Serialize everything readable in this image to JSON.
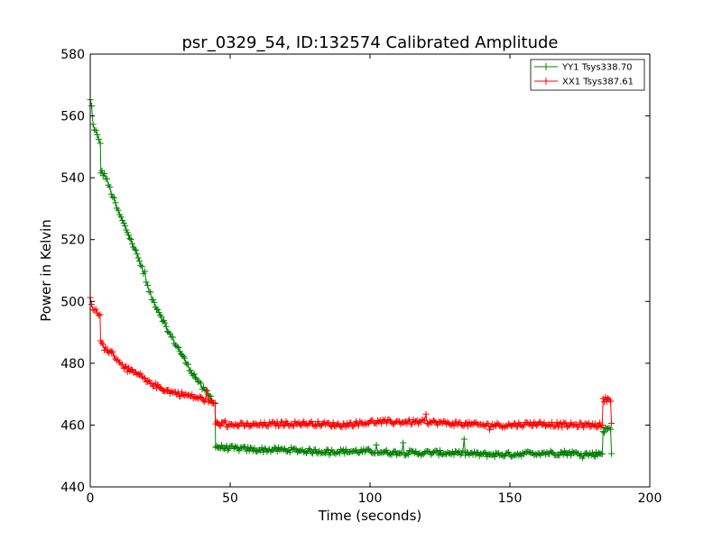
{
  "chart_data": {
    "type": "line",
    "title": "psr_0329_54, ID:132574 Calibrated Amplitude",
    "xlabel": "Time (seconds)",
    "ylabel": "Power in Kelvin",
    "xlim": [
      0,
      200
    ],
    "ylim": [
      440,
      580
    ],
    "xticks": [
      0,
      50,
      100,
      150,
      200
    ],
    "yticks": [
      440,
      460,
      480,
      500,
      520,
      540,
      560,
      580
    ],
    "grid": false,
    "legend_position": "top-right",
    "marker": "plus",
    "series": [
      {
        "name": "YY1 Tsys338.70",
        "color": "#008000",
        "points": [
          [
            0,
            565
          ],
          [
            0.5,
            563
          ],
          [
            1,
            557
          ],
          [
            2,
            555
          ],
          [
            3,
            552
          ],
          [
            3.6,
            551
          ],
          [
            3.8,
            542
          ],
          [
            5,
            541
          ],
          [
            6,
            539
          ],
          [
            8,
            534
          ],
          [
            10,
            529
          ],
          [
            12,
            525
          ],
          [
            15,
            519
          ],
          [
            18,
            512
          ],
          [
            20,
            506
          ],
          [
            22,
            501
          ],
          [
            25,
            496
          ],
          [
            28,
            490
          ],
          [
            30,
            487
          ],
          [
            32,
            484
          ],
          [
            35,
            479
          ],
          [
            38,
            475
          ],
          [
            40,
            472
          ],
          [
            42,
            470
          ],
          [
            44,
            468
          ],
          [
            44.6,
            467
          ],
          [
            44.8,
            453
          ],
          [
            50,
            452.5
          ],
          [
            60,
            452
          ],
          [
            70,
            452
          ],
          [
            80,
            451.5
          ],
          [
            90,
            451.5
          ],
          [
            100,
            451.5
          ],
          [
            110,
            451
          ],
          [
            120,
            451
          ],
          [
            130,
            451
          ],
          [
            140,
            450.5
          ],
          [
            150,
            450.5
          ],
          [
            160,
            451
          ],
          [
            170,
            451
          ],
          [
            180,
            450.5
          ],
          [
            183,
            451
          ],
          [
            183.3,
            458
          ],
          [
            185,
            459
          ],
          [
            186,
            458.5
          ],
          [
            186.3,
            450.5
          ]
        ]
      },
      {
        "name": "XX1 Tsys387.61",
        "color": "#ff0000",
        "points": [
          [
            0,
            501
          ],
          [
            1,
            498
          ],
          [
            2,
            497
          ],
          [
            3,
            496
          ],
          [
            3.5,
            495
          ],
          [
            3.7,
            487
          ],
          [
            5,
            485
          ],
          [
            8,
            483
          ],
          [
            10,
            481
          ],
          [
            12,
            479
          ],
          [
            15,
            477
          ],
          [
            18,
            476
          ],
          [
            20,
            474
          ],
          [
            22,
            473.5
          ],
          [
            25,
            472
          ],
          [
            28,
            471
          ],
          [
            30,
            470.5
          ],
          [
            35,
            469.5
          ],
          [
            40,
            468.5
          ],
          [
            44,
            467
          ],
          [
            44.6,
            467
          ],
          [
            44.8,
            460.5
          ],
          [
            50,
            460
          ],
          [
            60,
            460
          ],
          [
            70,
            460.5
          ],
          [
            80,
            460.5
          ],
          [
            90,
            460
          ],
          [
            100,
            461
          ],
          [
            110,
            461
          ],
          [
            120,
            461
          ],
          [
            130,
            460.5
          ],
          [
            140,
            460
          ],
          [
            150,
            460
          ],
          [
            160,
            460.5
          ],
          [
            170,
            460
          ],
          [
            180,
            460
          ],
          [
            183,
            460
          ],
          [
            183.3,
            468
          ],
          [
            185,
            468.5
          ],
          [
            186,
            468.5
          ],
          [
            186.3,
            460
          ]
        ]
      }
    ]
  }
}
